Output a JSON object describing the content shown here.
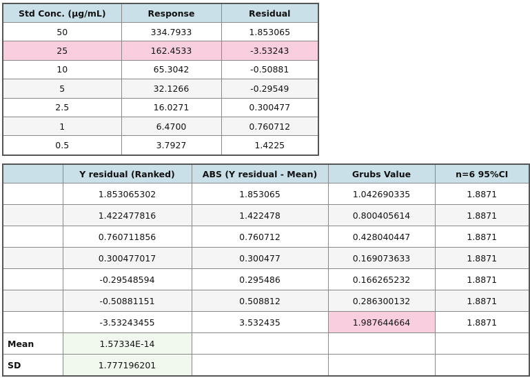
{
  "tables": [
    {
      "headers": [
        "Std Conc. (µg/mL)",
        "Response",
        "Residual"
      ],
      "rows": [
        [
          "50",
          "334.7933",
          "1.853065"
        ],
        [
          "25",
          "162.4533",
          "-3.53243"
        ],
        [
          "10",
          "65.3042",
          "-0.50881"
        ],
        [
          "5",
          "32.1266",
          "-0.29549"
        ],
        [
          "2.5",
          "16.0271",
          "0.300477"
        ],
        [
          "1",
          "6.4700",
          "0.760712"
        ],
        [
          "0.5",
          "3.7927",
          "1.4225"
        ]
      ]
    },
    {
      "headers": [
        "Y residual (Ranked)",
        "ABS (Y residual - Mean)",
        "Grubs Value",
        "n=6 95%CI"
      ],
      "rows": [
        [
          "1.853065302",
          "1.853065",
          "1.042690335",
          "1.8871"
        ],
        [
          "1.422477816",
          "1.422478",
          "0.800405614",
          "1.8871"
        ],
        [
          "0.760711856",
          "0.760712",
          "0.428040447",
          "1.8871"
        ],
        [
          "0.300477017",
          "0.300477",
          "0.169073633",
          "1.8871"
        ],
        [
          "-0.29548594",
          "0.295486",
          "0.166265232",
          "1.8871"
        ],
        [
          "-0.50881151",
          "0.508812",
          "0.286300132",
          "1.8871"
        ],
        [
          "-3.53243455",
          "3.532435",
          "1.987644664",
          "1.8871"
        ]
      ],
      "summary": [
        {
          "label": "Mean",
          "value": "1.57334E-14"
        },
        {
          "label": "SD",
          "value": "1.777196201"
        }
      ]
    }
  ]
}
